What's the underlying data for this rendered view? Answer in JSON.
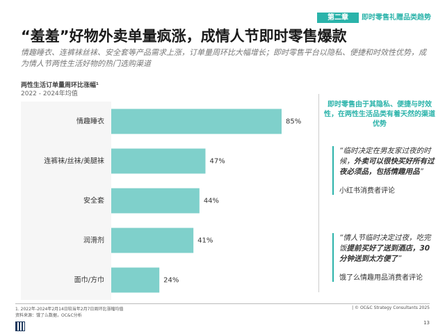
{
  "header": {
    "chapter": "第二章",
    "section": "即时零售礼赠品类趋势",
    "title": "“羞羞”好物外卖单量疯涨，成情人节即时零售爆款",
    "subtitle": "情趣睡衣、连裤袜丝袜、安全套等产品需求上涨，订单量周环比大幅增长；即时零售平台以隐私、便捷和时效性优势，成为情人节两性生活好物的热门选购渠道"
  },
  "chart_data": {
    "type": "bar",
    "orientation": "horizontal",
    "title": "两性生活订单量周环比涨幅¹",
    "subtitle": "2022 - 2024年均值",
    "categories": [
      "情趣睡衣",
      "连裤袜/丝袜/美腿袜",
      "安全套",
      "润滑剂",
      "面巾/方巾"
    ],
    "values": [
      85,
      47,
      44,
      41,
      24
    ],
    "value_labels": [
      "85%",
      "47%",
      "44%",
      "41%",
      "24%"
    ],
    "color": "#7fd0cb"
  },
  "sidebar": {
    "headline": "即时零售由于其隐私、便捷与时效性，在两性生活品类有着天然的渠道优势",
    "quotes": [
      {
        "parts": [
          "“临时决定在男友家过夜的时候，",
          "外卖可以很快买好所有过夜必须品，包括情趣用品",
          "”"
        ],
        "source": "小红书消费者评论"
      },
      {
        "parts": [
          "“情人节临时决定过夜，吃完饭",
          "提前买好了送到酒店，30分钟送到太方便了",
          "”"
        ],
        "source": "饿了么情趣用品消费者评论"
      }
    ]
  },
  "footer": {
    "note": "1. 2022年-2024年2月14日较当年2月7日周环比涨幅均值",
    "source": "资料来源：饿了么数据，OC&C分析",
    "copyright": "| © OC&C Strategy Consultants 2025",
    "page": "13"
  }
}
